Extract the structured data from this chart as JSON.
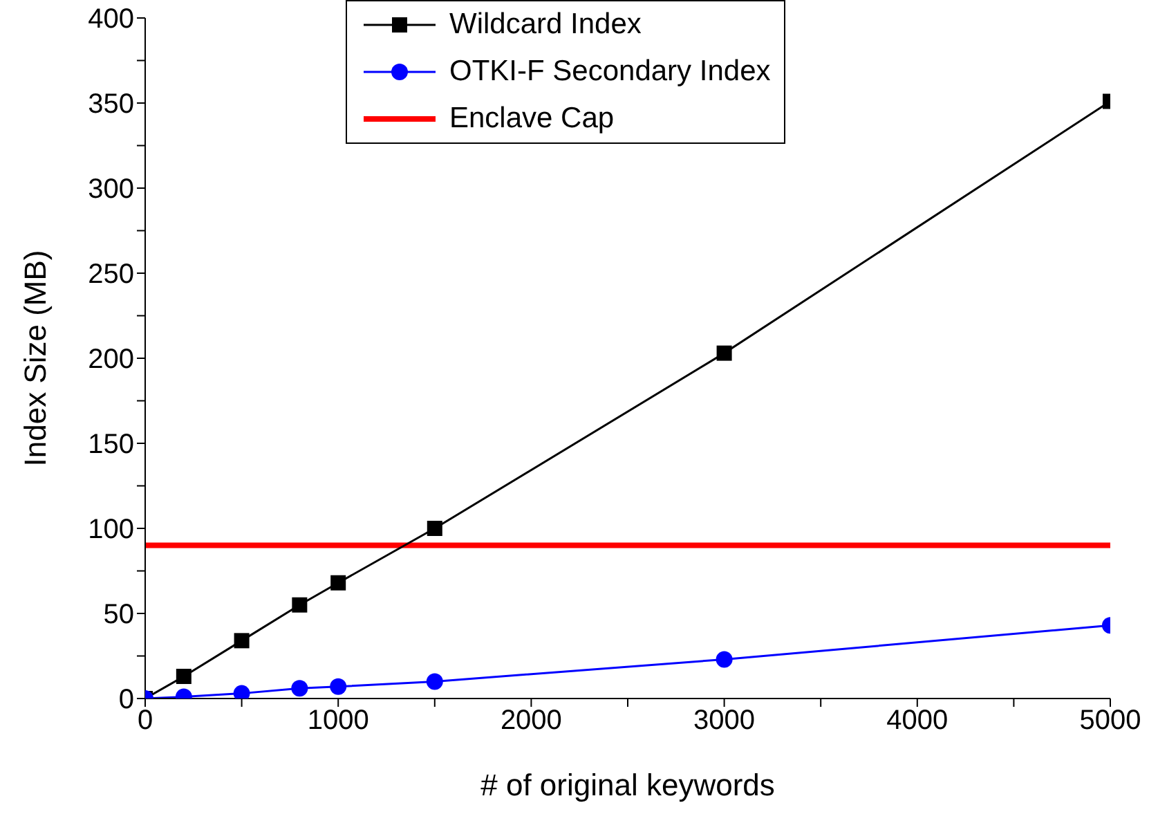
{
  "chart_data": {
    "type": "line",
    "xlabel": "# of original keywords",
    "ylabel": "Index Size (MB)",
    "x": [
      0,
      200,
      500,
      800,
      1000,
      1500,
      3000,
      5000
    ],
    "series": [
      {
        "name": "Wildcard Index",
        "color": "#000000",
        "marker": "square",
        "values": [
          0,
          13,
          34,
          55,
          68,
          100,
          203,
          351
        ]
      },
      {
        "name": "OTKI-F Secondary Index",
        "color": "#0000ff",
        "marker": "circle",
        "values": [
          0,
          1,
          3,
          6,
          7,
          10,
          23,
          43
        ]
      }
    ],
    "ref_lines": [
      {
        "axis": "y",
        "value": 90,
        "label": "Enclave Cap",
        "color": "#ff0000"
      }
    ],
    "xlim": [
      0,
      5000
    ],
    "xticks": [
      0,
      {
        "value": 500,
        "label": null
      },
      1000,
      {
        "value": 1500,
        "label": null
      },
      2000,
      {
        "value": 2500,
        "label": null
      },
      3000,
      {
        "value": 3500,
        "label": null
      },
      4000,
      {
        "value": 4500,
        "label": null
      },
      5000
    ],
    "ylim": [
      0,
      400
    ],
    "yticks": [
      0,
      {
        "value": 25,
        "label": null
      },
      50,
      {
        "value": 75,
        "label": null
      },
      100,
      {
        "value": 125,
        "label": null
      },
      150,
      {
        "value": 175,
        "label": null
      },
      200,
      {
        "value": 225,
        "label": null
      },
      250,
      {
        "value": 275,
        "label": null
      },
      300,
      {
        "value": 325,
        "label": null
      },
      350,
      {
        "value": 375,
        "label": null
      },
      400
    ],
    "grid": false,
    "legend": "top",
    "line_style": "solid"
  }
}
